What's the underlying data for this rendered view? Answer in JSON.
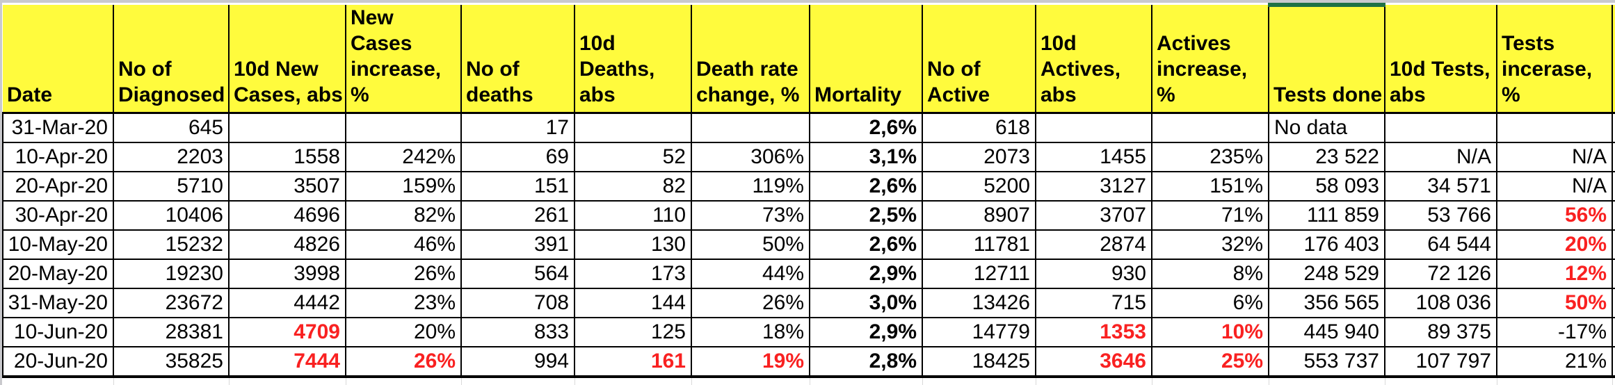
{
  "app": {
    "type": "spreadsheet-grid",
    "title": "COVID-19 statistics table"
  },
  "colors": {
    "header_bg": "#fffb3d",
    "red_text": "#f92121",
    "green_top_border": "#1f7145",
    "grid_line": "#000000",
    "ghost_grid_line": "#d9d9d9",
    "margin_gray": "#c9c9cd"
  },
  "table": {
    "columns": [
      {
        "key": "date",
        "label": "Date"
      },
      {
        "key": "no-of-diagnosed",
        "label": "No of\nDiagnosed"
      },
      {
        "key": "10d-new-cases-abs",
        "label": "10d New\nCases, abs"
      },
      {
        "key": "new-cases-increase-pct",
        "label": "New Cases\nincrease, %"
      },
      {
        "key": "no-of-deaths",
        "label": "No of\ndeaths"
      },
      {
        "key": "10d-deaths-abs",
        "label": "10d\nDeaths, abs"
      },
      {
        "key": "death-rate-change-pct",
        "label": "Death rate\nchange, %"
      },
      {
        "key": "mortality",
        "label": "Mortality"
      },
      {
        "key": "no-of-active",
        "label": "No of\nActive"
      },
      {
        "key": "10d-actives-abs",
        "label": "10d\nActives,\nabs"
      },
      {
        "key": "actives-increase-pct",
        "label": "Actives\nincrease, %"
      },
      {
        "key": "tests-done",
        "label": "Tests done",
        "green_top": true
      },
      {
        "key": "10d-tests-abs",
        "label": "10d Tests,\nabs"
      },
      {
        "key": "tests-incerase-pct",
        "label": "Tests\nincerase, %"
      }
    ],
    "rows": [
      {
        "cells": [
          {
            "t": "31-Mar-20"
          },
          {
            "t": "645"
          },
          {
            "t": ""
          },
          {
            "t": ""
          },
          {
            "t": "17"
          },
          {
            "t": ""
          },
          {
            "t": ""
          },
          {
            "t": "2,6%",
            "bold": true
          },
          {
            "t": "618"
          },
          {
            "t": ""
          },
          {
            "t": ""
          },
          {
            "t": "No data",
            "align": "left"
          },
          {
            "t": ""
          },
          {
            "t": ""
          }
        ]
      },
      {
        "cells": [
          {
            "t": "10-Apr-20"
          },
          {
            "t": "2203"
          },
          {
            "t": "1558"
          },
          {
            "t": "242%"
          },
          {
            "t": "69"
          },
          {
            "t": "52"
          },
          {
            "t": "306%"
          },
          {
            "t": "3,1%",
            "bold": true
          },
          {
            "t": "2073"
          },
          {
            "t": "1455"
          },
          {
            "t": "235%"
          },
          {
            "t": "23 522"
          },
          {
            "t": "N/A"
          },
          {
            "t": "N/A"
          }
        ]
      },
      {
        "cells": [
          {
            "t": "20-Apr-20"
          },
          {
            "t": "5710"
          },
          {
            "t": "3507"
          },
          {
            "t": "159%"
          },
          {
            "t": "151"
          },
          {
            "t": "82"
          },
          {
            "t": "119%"
          },
          {
            "t": "2,6%",
            "bold": true
          },
          {
            "t": "5200"
          },
          {
            "t": "3127"
          },
          {
            "t": "151%"
          },
          {
            "t": "58 093"
          },
          {
            "t": "34 571"
          },
          {
            "t": "N/A"
          }
        ]
      },
      {
        "cells": [
          {
            "t": "30-Apr-20"
          },
          {
            "t": "10406"
          },
          {
            "t": "4696"
          },
          {
            "t": "82%"
          },
          {
            "t": "261"
          },
          {
            "t": "110"
          },
          {
            "t": "73%"
          },
          {
            "t": "2,5%",
            "bold": true
          },
          {
            "t": "8907"
          },
          {
            "t": "3707"
          },
          {
            "t": "71%"
          },
          {
            "t": "111 859"
          },
          {
            "t": "53 766"
          },
          {
            "t": "56%",
            "red": true
          }
        ]
      },
      {
        "cells": [
          {
            "t": "10-May-20"
          },
          {
            "t": "15232"
          },
          {
            "t": "4826"
          },
          {
            "t": "46%"
          },
          {
            "t": "391"
          },
          {
            "t": "130"
          },
          {
            "t": "50%"
          },
          {
            "t": "2,6%",
            "bold": true
          },
          {
            "t": "11781"
          },
          {
            "t": "2874"
          },
          {
            "t": "32%"
          },
          {
            "t": "176 403"
          },
          {
            "t": "64 544"
          },
          {
            "t": "20%",
            "red": true
          }
        ]
      },
      {
        "cells": [
          {
            "t": "20-May-20"
          },
          {
            "t": "19230"
          },
          {
            "t": "3998"
          },
          {
            "t": "26%"
          },
          {
            "t": "564"
          },
          {
            "t": "173"
          },
          {
            "t": "44%"
          },
          {
            "t": "2,9%",
            "bold": true
          },
          {
            "t": "12711"
          },
          {
            "t": "930"
          },
          {
            "t": "8%"
          },
          {
            "t": "248 529"
          },
          {
            "t": "72 126"
          },
          {
            "t": "12%",
            "red": true
          }
        ]
      },
      {
        "cells": [
          {
            "t": "31-May-20"
          },
          {
            "t": "23672"
          },
          {
            "t": "4442"
          },
          {
            "t": "23%"
          },
          {
            "t": "708"
          },
          {
            "t": "144"
          },
          {
            "t": "26%"
          },
          {
            "t": "3,0%",
            "bold": true
          },
          {
            "t": "13426"
          },
          {
            "t": "715"
          },
          {
            "t": "6%"
          },
          {
            "t": "356 565"
          },
          {
            "t": "108 036"
          },
          {
            "t": "50%",
            "red": true
          }
        ]
      },
      {
        "cells": [
          {
            "t": "10-Jun-20"
          },
          {
            "t": "28381"
          },
          {
            "t": "4709",
            "red": true
          },
          {
            "t": "20%"
          },
          {
            "t": "833"
          },
          {
            "t": "125"
          },
          {
            "t": "18%"
          },
          {
            "t": "2,9%",
            "bold": true
          },
          {
            "t": "14779"
          },
          {
            "t": "1353",
            "red": true
          },
          {
            "t": "10%",
            "red": true
          },
          {
            "t": "445 940"
          },
          {
            "t": "89 375"
          },
          {
            "t": "-17%"
          }
        ]
      },
      {
        "cells": [
          {
            "t": "20-Jun-20"
          },
          {
            "t": "35825"
          },
          {
            "t": "7444",
            "red": true
          },
          {
            "t": "26%",
            "red": true
          },
          {
            "t": "994"
          },
          {
            "t": "161",
            "red": true
          },
          {
            "t": "19%",
            "red": true
          },
          {
            "t": "2,8%",
            "bold": true
          },
          {
            "t": "18425"
          },
          {
            "t": "3646",
            "red": true
          },
          {
            "t": "25%",
            "red": true
          },
          {
            "t": "553 737"
          },
          {
            "t": "107 797"
          },
          {
            "t": "21%"
          }
        ]
      }
    ]
  }
}
